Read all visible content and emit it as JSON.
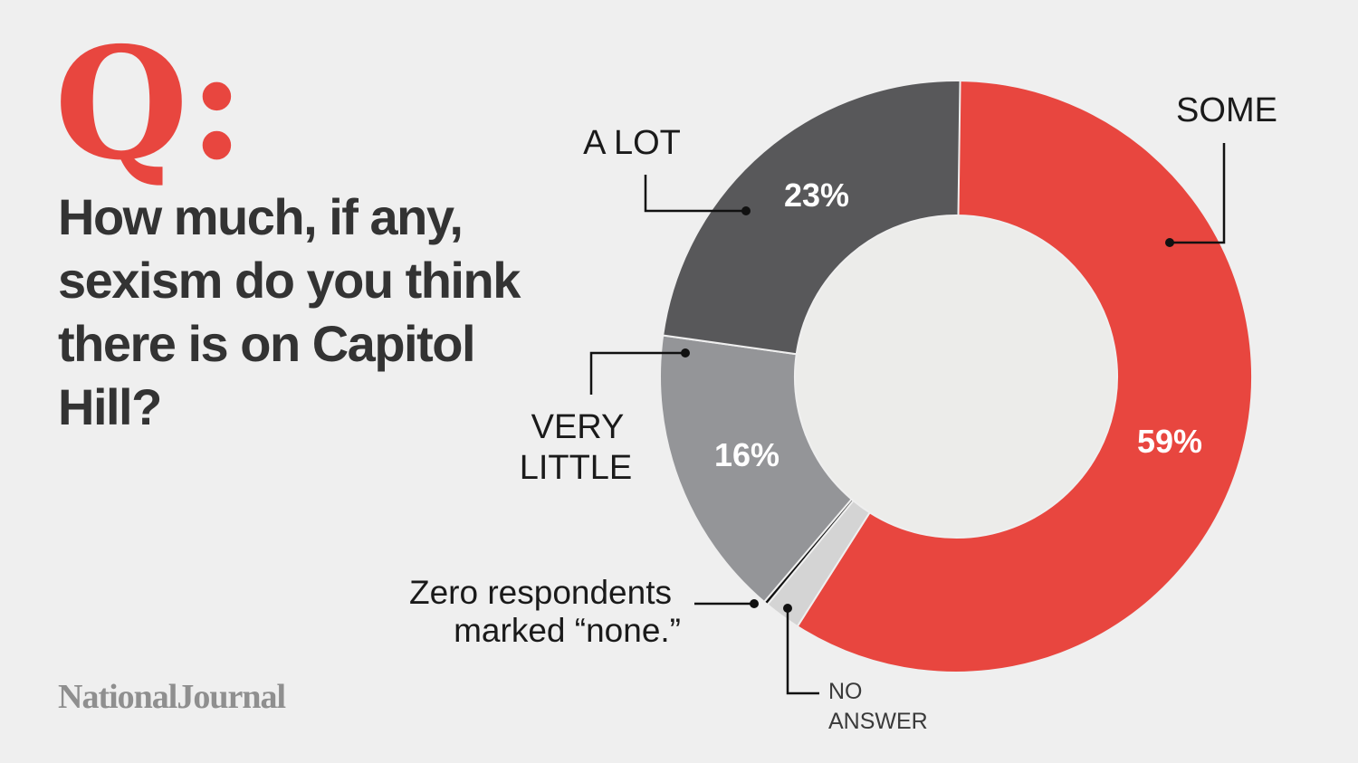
{
  "header": {
    "q_mark": "Q:",
    "question": "How much, if any, sexism do you think there is on Capitol Hill?"
  },
  "source": "NationalJournal",
  "chart_data": {
    "type": "pie",
    "title": "How much, if any, sexism do you think there is on Capitol Hill?",
    "categories": [
      "SOME",
      "NO ANSWER",
      "NONE",
      "VERY LITTLE",
      "A LOT"
    ],
    "values": [
      59,
      2,
      0,
      16,
      23
    ],
    "value_labels": [
      "59%",
      "",
      "",
      "16%",
      "23%"
    ],
    "colors": [
      "#e8463f",
      "#d4d4d4",
      "#111111",
      "#949598",
      "#58585a"
    ],
    "annotations": {
      "none_note_line1": "Zero respondents",
      "none_note_line2": "marked “none.”",
      "very_little_line1": "VERY",
      "very_little_line2": "LITTLE",
      "no_answer_line1": "NO",
      "no_answer_line2": "ANSWER"
    },
    "legend": "none"
  }
}
